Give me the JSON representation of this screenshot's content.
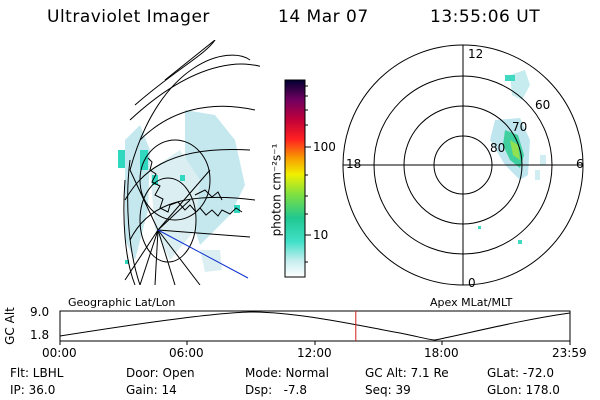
{
  "header": {
    "title": "Ultraviolet Imager",
    "date": "14 Mar 07",
    "time": "13:55:06 UT"
  },
  "colorbar": {
    "label": "photon cm⁻²s⁻¹",
    "tick_100": "100",
    "tick_10": "10"
  },
  "polar_plot": {
    "mlt_labels": {
      "top": "12",
      "left": "18",
      "right": "6",
      "bottom": "0"
    },
    "lat_labels": [
      "60",
      "70",
      "80"
    ]
  },
  "panel_titles": {
    "left": "Geographic Lat/Lon",
    "right": "Apex MLat/MLT"
  },
  "gc_plot": {
    "ylabel": "GC Alt",
    "y_max": "9.0",
    "y_min": "1.8",
    "time_ticks": [
      "00:00",
      "06:00",
      "12:00",
      "18:00",
      "23:59"
    ],
    "current_time_fraction": 0.58
  },
  "info": {
    "filter": "Flt: LBHL",
    "ip": "IP: 36.0",
    "door": "Door: Open",
    "gain": "Gain: 14",
    "mode": "Mode: Normal",
    "dsp": "Dsp:   -7.8",
    "gc_alt": "GC Alt: 7.1 Re",
    "seq": "Seq: 39",
    "glat": "GLat: -72.0",
    "glon": "GLon: 178.0"
  }
}
